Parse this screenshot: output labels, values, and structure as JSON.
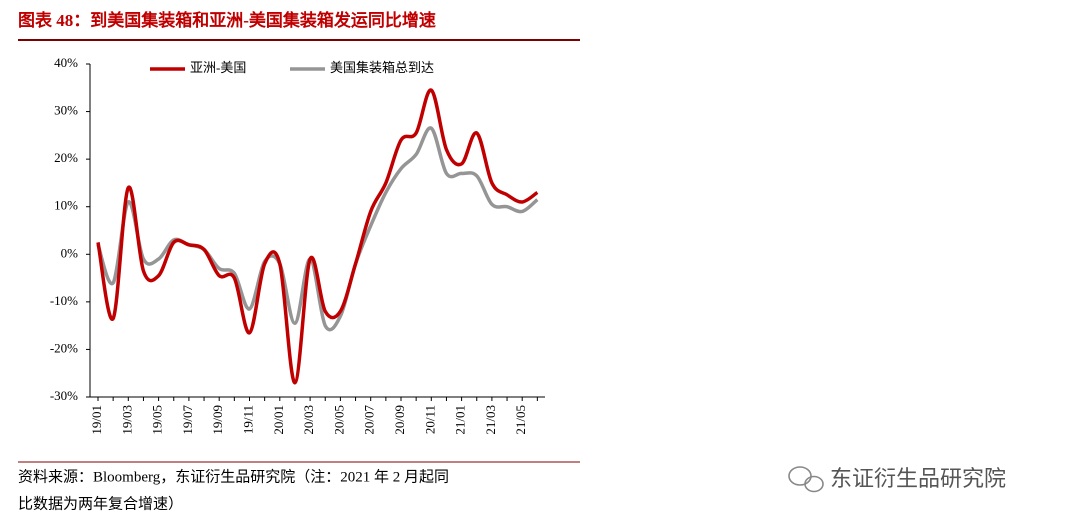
{
  "chart_data": {
    "type": "line",
    "title": "图表 48：到美国集装箱和亚洲-美国集装箱发运同比增速",
    "categories": [
      "19/01",
      null,
      "19/03",
      null,
      "19/05",
      null,
      "19/07",
      null,
      "19/09",
      null,
      "19/11",
      null,
      "20/01",
      null,
      "20/03",
      null,
      "20/05",
      null,
      "20/07",
      null,
      "20/09",
      null,
      "20/11",
      null,
      "21/01",
      null,
      "21/03",
      null,
      "21/05",
      null
    ],
    "series": [
      {
        "name": "亚洲-美国",
        "color": "#c00000",
        "values": [
          2.5,
          -13.5,
          14,
          -3.5,
          -4.5,
          2.5,
          2,
          1,
          -4.5,
          -5,
          -16.5,
          -2,
          -2,
          -27,
          -1,
          -12,
          -12,
          -2,
          9,
          15,
          24,
          25.5,
          34.5,
          22,
          19,
          25.5,
          15,
          12.5,
          11,
          13
        ]
      },
      {
        "name": "美国集装箱总到达",
        "color": "#959595",
        "values": [
          2,
          -6,
          11,
          -1,
          -1,
          3,
          2,
          1,
          -3,
          -4,
          -11.5,
          -1.5,
          -2,
          -14.5,
          -1,
          -15,
          -13,
          -2,
          6,
          13,
          18,
          21,
          26.5,
          17,
          17,
          16.5,
          10.5,
          10,
          9,
          11.5
        ]
      }
    ],
    "ylim": [
      -30,
      40
    ],
    "yticks": [
      {
        "value": -30,
        "label": "-30%"
      },
      {
        "value": -20,
        "label": "-20%"
      },
      {
        "value": -10,
        "label": "-10%"
      },
      {
        "value": 0,
        "label": "0%"
      },
      {
        "value": 10,
        "label": "10%"
      },
      {
        "value": 20,
        "label": "20%"
      },
      {
        "value": 30,
        "label": "30%"
      },
      {
        "value": 40,
        "label": "40%"
      }
    ],
    "grid": false,
    "legend": "top"
  },
  "source": [
    "资料来源：Bloomberg，东证衍生品研究院（注：2021 年 2 月起同",
    "比数据为两年复合增速）"
  ],
  "watermark": "东证衍生品研究院"
}
